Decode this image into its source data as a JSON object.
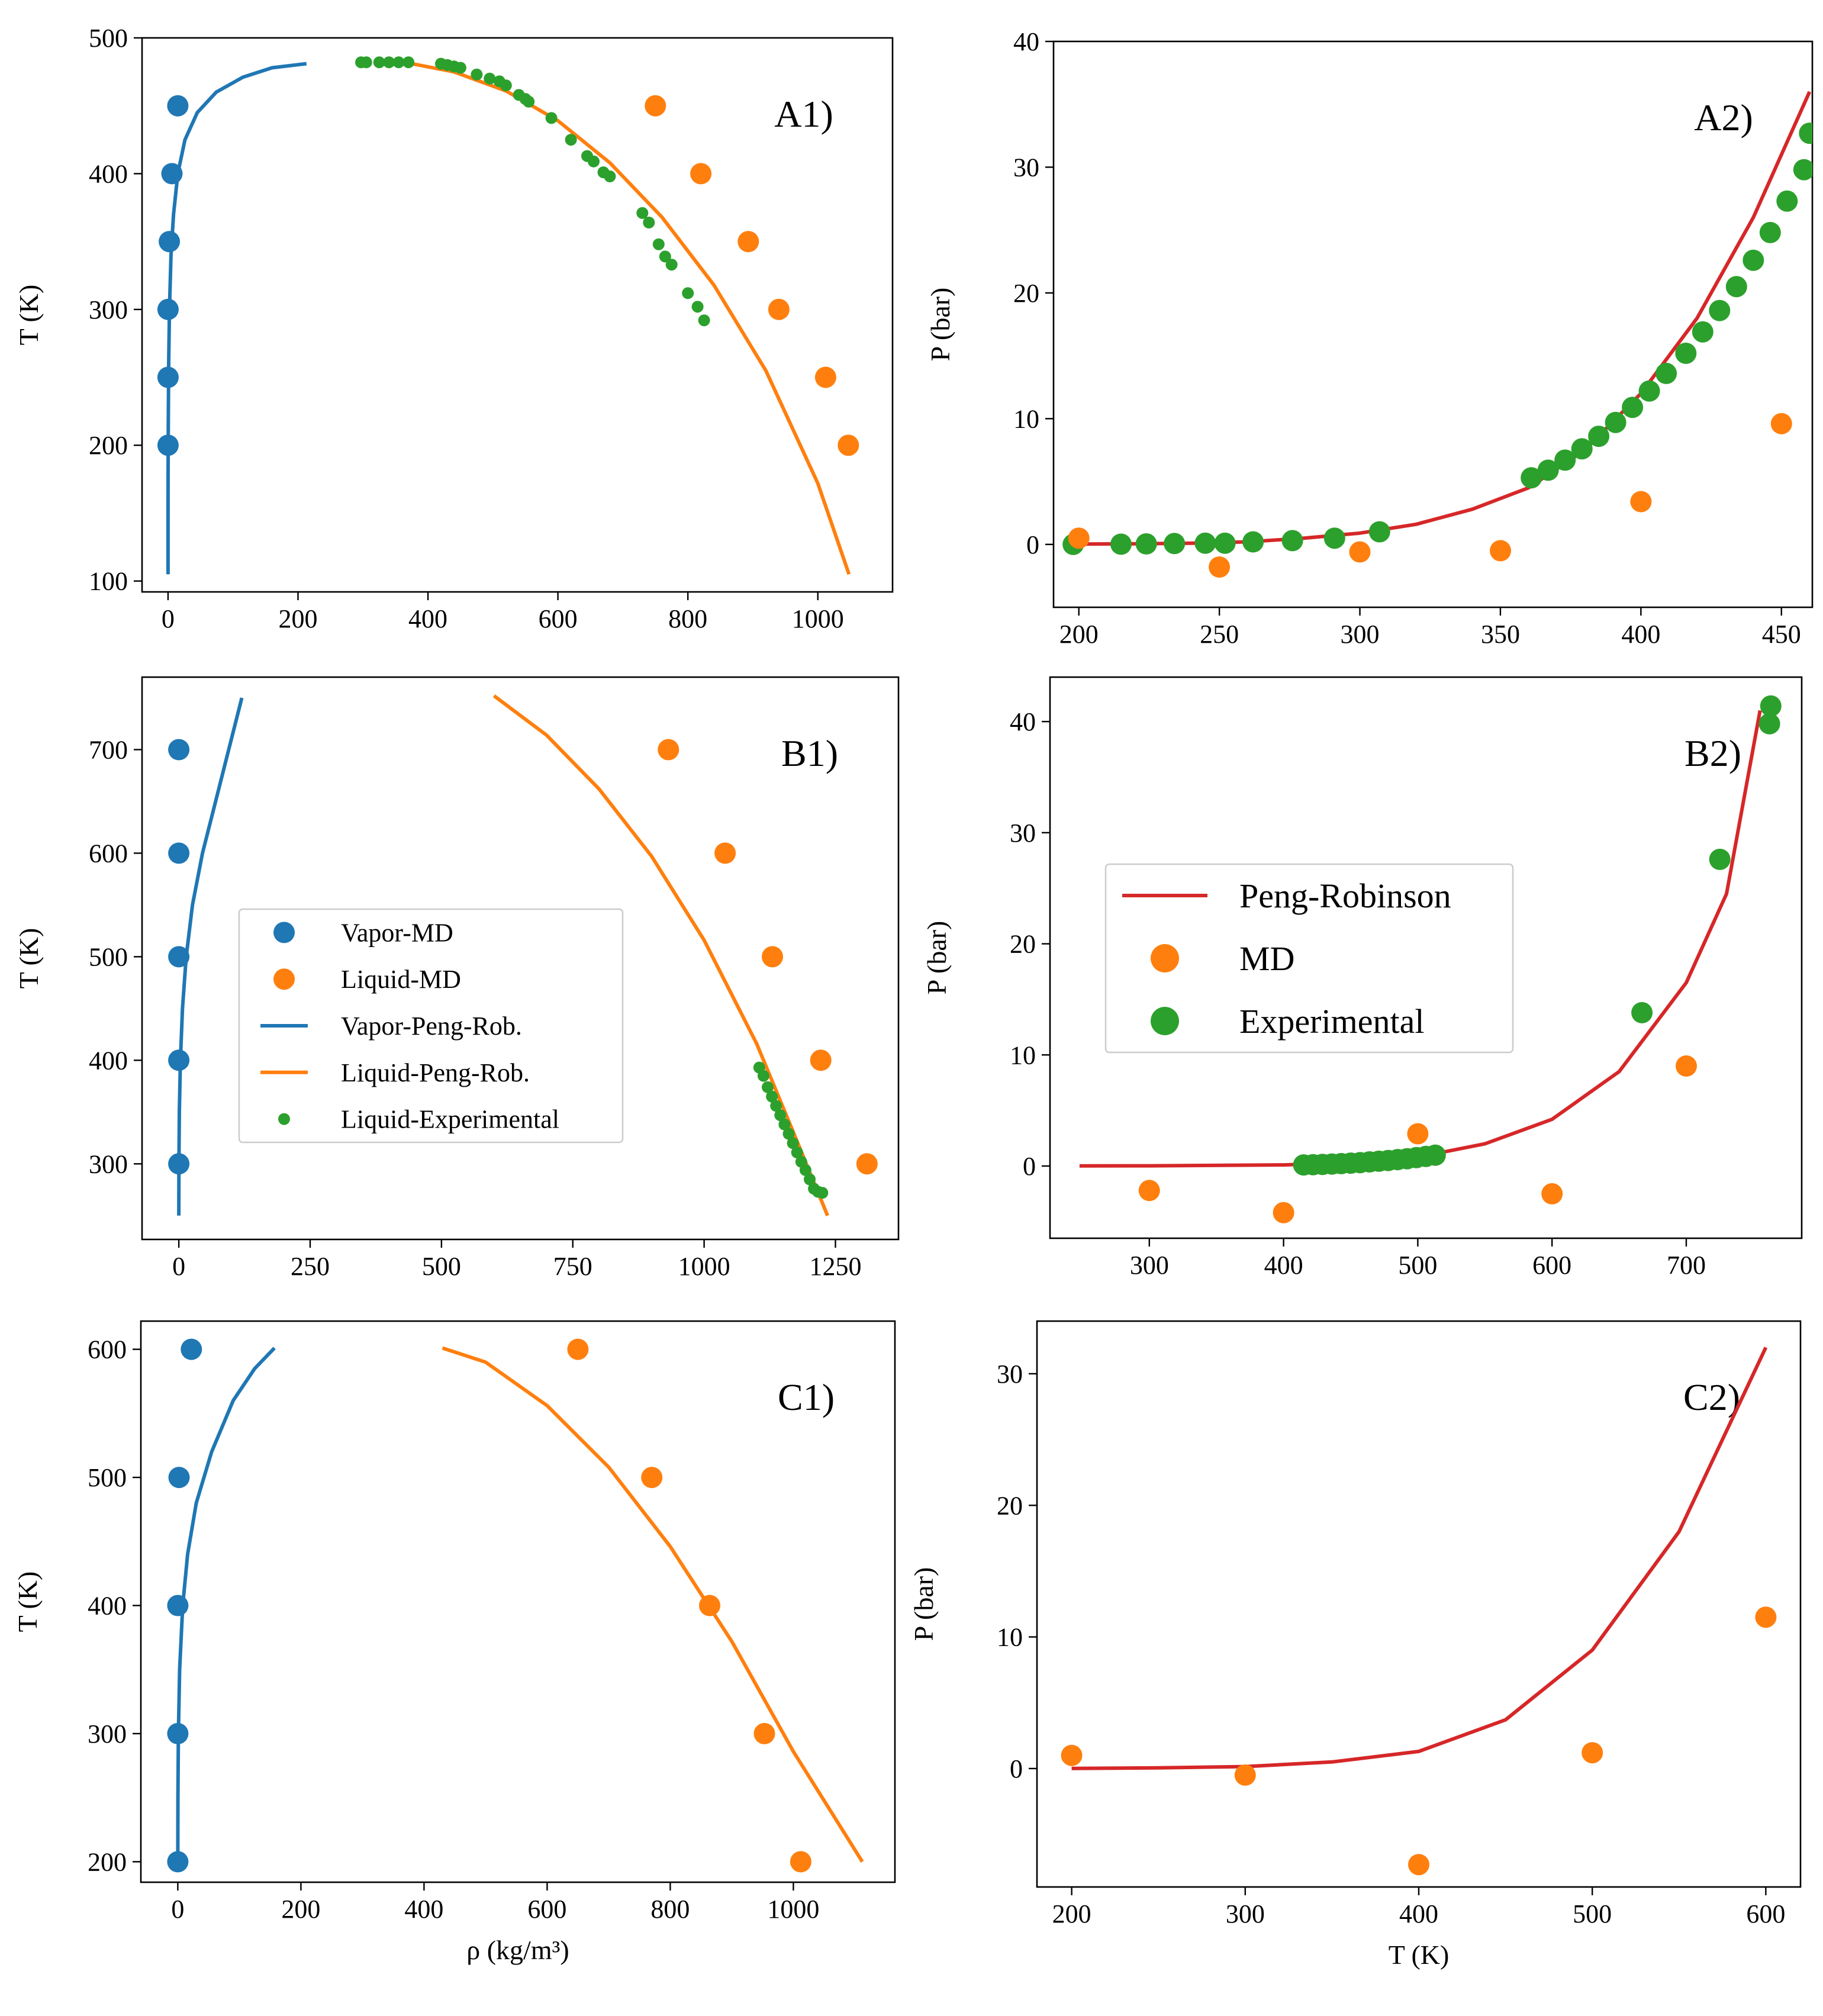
{
  "colors": {
    "vapor": "#1f77b4",
    "liquid": "#ff7f0e",
    "experimental": "#2ca02c",
    "peng_robinson": "#d62728"
  },
  "legend_left": {
    "items": [
      {
        "label": "Vapor-MD",
        "kind": "dot",
        "color": "#1f77b4"
      },
      {
        "label": "Liquid-MD",
        "kind": "dot",
        "color": "#ff7f0e"
      },
      {
        "label": "Vapor-Peng-Rob.",
        "kind": "line",
        "color": "#1f77b4"
      },
      {
        "label": "Liquid-Peng-Rob.",
        "kind": "line",
        "color": "#ff7f0e"
      },
      {
        "label": "Liquid-Experimental",
        "kind": "smalldot",
        "color": "#2ca02c"
      }
    ]
  },
  "legend_right": {
    "items": [
      {
        "label": "Peng-Robinson",
        "kind": "line",
        "color": "#d62728"
      },
      {
        "label": "MD",
        "kind": "dot",
        "color": "#ff7f0e"
      },
      {
        "label": "Experimental",
        "kind": "dot",
        "color": "#2ca02c"
      }
    ]
  },
  "chart_data": [
    {
      "id": "A1",
      "panel_label": "A1)",
      "type": "scatter",
      "xlabel": "",
      "ylabel": "T (K)",
      "xlim": [
        -40,
        1115
      ],
      "ylim": [
        92,
        500
      ],
      "xticks": [
        0,
        200,
        400,
        600,
        800,
        1000
      ],
      "yticks": [
        100,
        200,
        300,
        400,
        500
      ],
      "series": [
        {
          "name": "Vapor-Peng-Rob.",
          "kind": "line",
          "color": "#1f77b4",
          "x": [
            0,
            0.02,
            0.1,
            0.4,
            1.0,
            2.2,
            4.5,
            8.5,
            15,
            26,
            45,
            74,
            115,
            160,
            213
          ],
          "y": [
            105,
            140,
            180,
            220,
            260,
            300,
            340,
            370,
            400,
            425,
            445,
            460,
            471,
            478,
            481
          ]
        },
        {
          "name": "Liquid-Peng-Rob.",
          "kind": "line",
          "color": "#ff7f0e",
          "x": [
            375,
            440,
            520,
            600,
            680,
            760,
            840,
            920,
            1000,
            1048
          ],
          "y": [
            481,
            475,
            461,
            439,
            408,
            368,
            318,
            255,
            172,
            105
          ]
        },
        {
          "name": "Liquid-Experimental",
          "kind": "smalldot",
          "color": "#2ca02c",
          "x": [
            297,
            305,
            325,
            340,
            355,
            370,
            420,
            430,
            440,
            450,
            475,
            495,
            510,
            520,
            540,
            550,
            555,
            590,
            620,
            645,
            655,
            670,
            680,
            730,
            740,
            755,
            765,
            775,
            800,
            815,
            825
          ],
          "y": [
            482,
            482,
            482,
            482,
            482,
            482,
            481,
            480,
            479,
            478,
            473,
            470,
            468,
            465,
            458,
            455,
            453,
            441,
            425,
            413,
            409,
            401,
            398,
            371,
            364,
            348,
            339,
            333,
            312,
            302,
            292
          ]
        },
        {
          "name": "Vapor-MD",
          "kind": "dot",
          "color": "#1f77b4",
          "x": [
            0,
            0,
            0,
            2,
            6,
            15
          ],
          "y": [
            200,
            250,
            300,
            350,
            400,
            450
          ]
        },
        {
          "name": "Liquid-MD",
          "kind": "dot",
          "color": "#ff7f0e",
          "x": [
            1047,
            1012,
            940,
            893,
            820,
            750
          ],
          "y": [
            200,
            250,
            300,
            350,
            400,
            450
          ]
        }
      ]
    },
    {
      "id": "A2",
      "panel_label": "A2)",
      "type": "scatter",
      "xlabel": "",
      "ylabel": "P (bar)",
      "xlim": [
        191,
        461
      ],
      "ylim": [
        -5,
        40
      ],
      "xticks": [
        200,
        250,
        300,
        350,
        400,
        450
      ],
      "yticks": [
        0,
        10,
        20,
        30,
        40
      ],
      "series": [
        {
          "name": "Peng-Robinson",
          "kind": "line",
          "color": "#d62728",
          "x": [
            195,
            220,
            240,
            260,
            280,
            300,
            320,
            340,
            360,
            380,
            400,
            420,
            440,
            460
          ],
          "y": [
            0.02,
            0.05,
            0.1,
            0.2,
            0.5,
            0.9,
            1.6,
            2.8,
            4.5,
            7.5,
            12,
            18,
            26,
            36
          ]
        },
        {
          "name": "Experimental",
          "kind": "dot",
          "color": "#2ca02c",
          "x": [
            198,
            215,
            224,
            234,
            245,
            252,
            262,
            276,
            291,
            307,
            361,
            367,
            373,
            379,
            385,
            391,
            397,
            403,
            409,
            416,
            422,
            428,
            434,
            440,
            446,
            452,
            458,
            460
          ],
          "y": [
            0,
            0.02,
            0.04,
            0.07,
            0.1,
            0.1,
            0.2,
            0.3,
            0.5,
            1.0,
            5.3,
            5.9,
            6.7,
            7.6,
            8.6,
            9.7,
            10.9,
            12.2,
            13.6,
            15.2,
            16.9,
            18.6,
            20.5,
            22.6,
            24.8,
            27.3,
            29.8,
            32.7
          ]
        },
        {
          "name": "MD",
          "kind": "dot",
          "color": "#ff7f0e",
          "x": [
            200,
            250,
            300,
            350,
            400,
            450
          ],
          "y": [
            0.5,
            -1.8,
            -0.6,
            -0.5,
            3.4,
            9.6
          ]
        }
      ]
    },
    {
      "id": "B1",
      "panel_label": "B1)",
      "type": "scatter",
      "xlabel": "",
      "ylabel": "T (K)",
      "xlim": [
        -70,
        1370
      ],
      "ylim": [
        227,
        770
      ],
      "xticks": [
        0,
        250,
        500,
        750,
        1000,
        1250
      ],
      "yticks": [
        300,
        400,
        500,
        600,
        700
      ],
      "series": [
        {
          "name": "Vapor-Peng-Rob.",
          "kind": "line",
          "color": "#1f77b4",
          "x": [
            0,
            0.2,
            1,
            3,
            7,
            14,
            26,
            45,
            70,
            95,
            120
          ],
          "y": [
            250,
            300,
            350,
            400,
            450,
            500,
            550,
            600,
            650,
            700,
            750
          ]
        },
        {
          "name": "Liquid-Peng-Rob.",
          "kind": "line",
          "color": "#ff7f0e",
          "x": [
            600,
            700,
            800,
            900,
            1000,
            1100,
            1180,
            1235
          ],
          "y": [
            752,
            714,
            662,
            597,
            516,
            416,
            318,
            250
          ]
        },
        {
          "name": "Liquid-Experimental",
          "kind": "smalldot",
          "color": "#2ca02c",
          "x": [
            1105,
            1113,
            1121,
            1129,
            1137,
            1145,
            1153,
            1161,
            1169,
            1177,
            1185,
            1193,
            1201,
            1209,
            1217,
            1225
          ],
          "y": [
            393,
            385,
            374,
            365,
            356,
            347,
            338,
            329,
            320,
            311,
            302,
            294,
            285,
            276,
            273,
            272
          ]
        },
        {
          "name": "Vapor-MD",
          "kind": "dot",
          "color": "#1f77b4",
          "x": [
            0,
            0,
            0,
            0,
            0
          ],
          "y": [
            300,
            400,
            500,
            600,
            700
          ]
        },
        {
          "name": "Liquid-MD",
          "kind": "dot",
          "color": "#ff7f0e",
          "x": [
            1310,
            1222,
            1130,
            1040,
            932
          ],
          "y": [
            300,
            400,
            500,
            600,
            700
          ]
        }
      ]
    },
    {
      "id": "B2",
      "panel_label": "B2)",
      "type": "scatter",
      "xlabel": "",
      "ylabel": "P (bar)",
      "xlim": [
        226,
        786
      ],
      "ylim": [
        -6.5,
        44
      ],
      "xticks": [
        300,
        400,
        500,
        600,
        700
      ],
      "yticks": [
        0,
        10,
        20,
        30,
        40
      ],
      "series": [
        {
          "name": "Peng-Robinson",
          "kind": "line",
          "color": "#d62728",
          "x": [
            248,
            300,
            400,
            450,
            500,
            550,
            600,
            650,
            700,
            730,
            755
          ],
          "y": [
            0.01,
            0.02,
            0.1,
            0.3,
            0.8,
            2.0,
            4.2,
            8.5,
            16.5,
            24.5,
            41
          ]
        },
        {
          "name": "MD",
          "kind": "dot",
          "color": "#ff7f0e",
          "x": [
            300,
            400,
            500,
            600,
            700
          ],
          "y": [
            -2.2,
            -4.2,
            2.9,
            -2.5,
            9.0
          ]
        },
        {
          "name": "Experimental",
          "kind": "dot",
          "color": "#2ca02c",
          "x": [
            415,
            422,
            429,
            436,
            443,
            450,
            457,
            464,
            471,
            478,
            485,
            492,
            499,
            506,
            513,
            667,
            725,
            762,
            763
          ],
          "y": [
            0.1,
            0.12,
            0.15,
            0.18,
            0.22,
            0.26,
            0.31,
            0.37,
            0.43,
            0.5,
            0.58,
            0.66,
            0.76,
            0.86,
            0.98,
            13.8,
            27.6,
            39.8,
            41.4
          ]
        }
      ]
    },
    {
      "id": "C1",
      "panel_label": "C1)",
      "type": "scatter",
      "xlabel": "ρ (kg/m³)",
      "ylabel": "T (K)",
      "xlim": [
        -60,
        1165
      ],
      "ylim": [
        184,
        622
      ],
      "xticks": [
        0,
        200,
        400,
        600,
        800,
        1000
      ],
      "yticks": [
        200,
        300,
        400,
        500,
        600
      ],
      "series": [
        {
          "name": "Vapor-Peng-Rob.",
          "kind": "line",
          "color": "#1f77b4",
          "x": [
            0,
            0.2,
            1,
            3,
            8,
            16,
            30,
            55,
            90,
            125,
            157
          ],
          "y": [
            200,
            250,
            300,
            350,
            400,
            440,
            480,
            520,
            560,
            585,
            601
          ]
        },
        {
          "name": "Liquid-Peng-Rob.",
          "kind": "line",
          "color": "#ff7f0e",
          "x": [
            430,
            500,
            600,
            700,
            800,
            900,
            1000,
            1060,
            1112
          ],
          "y": [
            601,
            590,
            556,
            508,
            446,
            372,
            286,
            240,
            200
          ]
        },
        {
          "name": "Vapor-MD",
          "kind": "dot",
          "color": "#1f77b4",
          "x": [
            0,
            0,
            0,
            2,
            22
          ],
          "y": [
            200,
            300,
            400,
            500,
            600
          ]
        },
        {
          "name": "Liquid-MD",
          "kind": "dot",
          "color": "#ff7f0e",
          "x": [
            1012,
            953,
            864,
            770,
            650
          ],
          "y": [
            200,
            300,
            400,
            500,
            600
          ]
        }
      ]
    },
    {
      "id": "C2",
      "panel_label": "C2)",
      "type": "scatter",
      "xlabel": "T (K)",
      "ylabel": "P (bar)",
      "xlim": [
        180,
        620
      ],
      "ylim": [
        -9,
        34
      ],
      "xticks": [
        200,
        300,
        400,
        500,
        600
      ],
      "yticks": [
        0,
        10,
        20,
        30
      ],
      "series": [
        {
          "name": "Peng-Robinson",
          "kind": "line",
          "color": "#d62728",
          "x": [
            200,
            250,
            300,
            350,
            400,
            450,
            500,
            550,
            600
          ],
          "y": [
            0.01,
            0.05,
            0.15,
            0.5,
            1.3,
            3.7,
            9.0,
            18,
            32
          ]
        },
        {
          "name": "MD",
          "kind": "dot",
          "color": "#ff7f0e",
          "x": [
            200,
            300,
            400,
            500,
            600
          ],
          "y": [
            1.0,
            -0.5,
            -7.3,
            1.2,
            11.5
          ]
        }
      ]
    }
  ]
}
